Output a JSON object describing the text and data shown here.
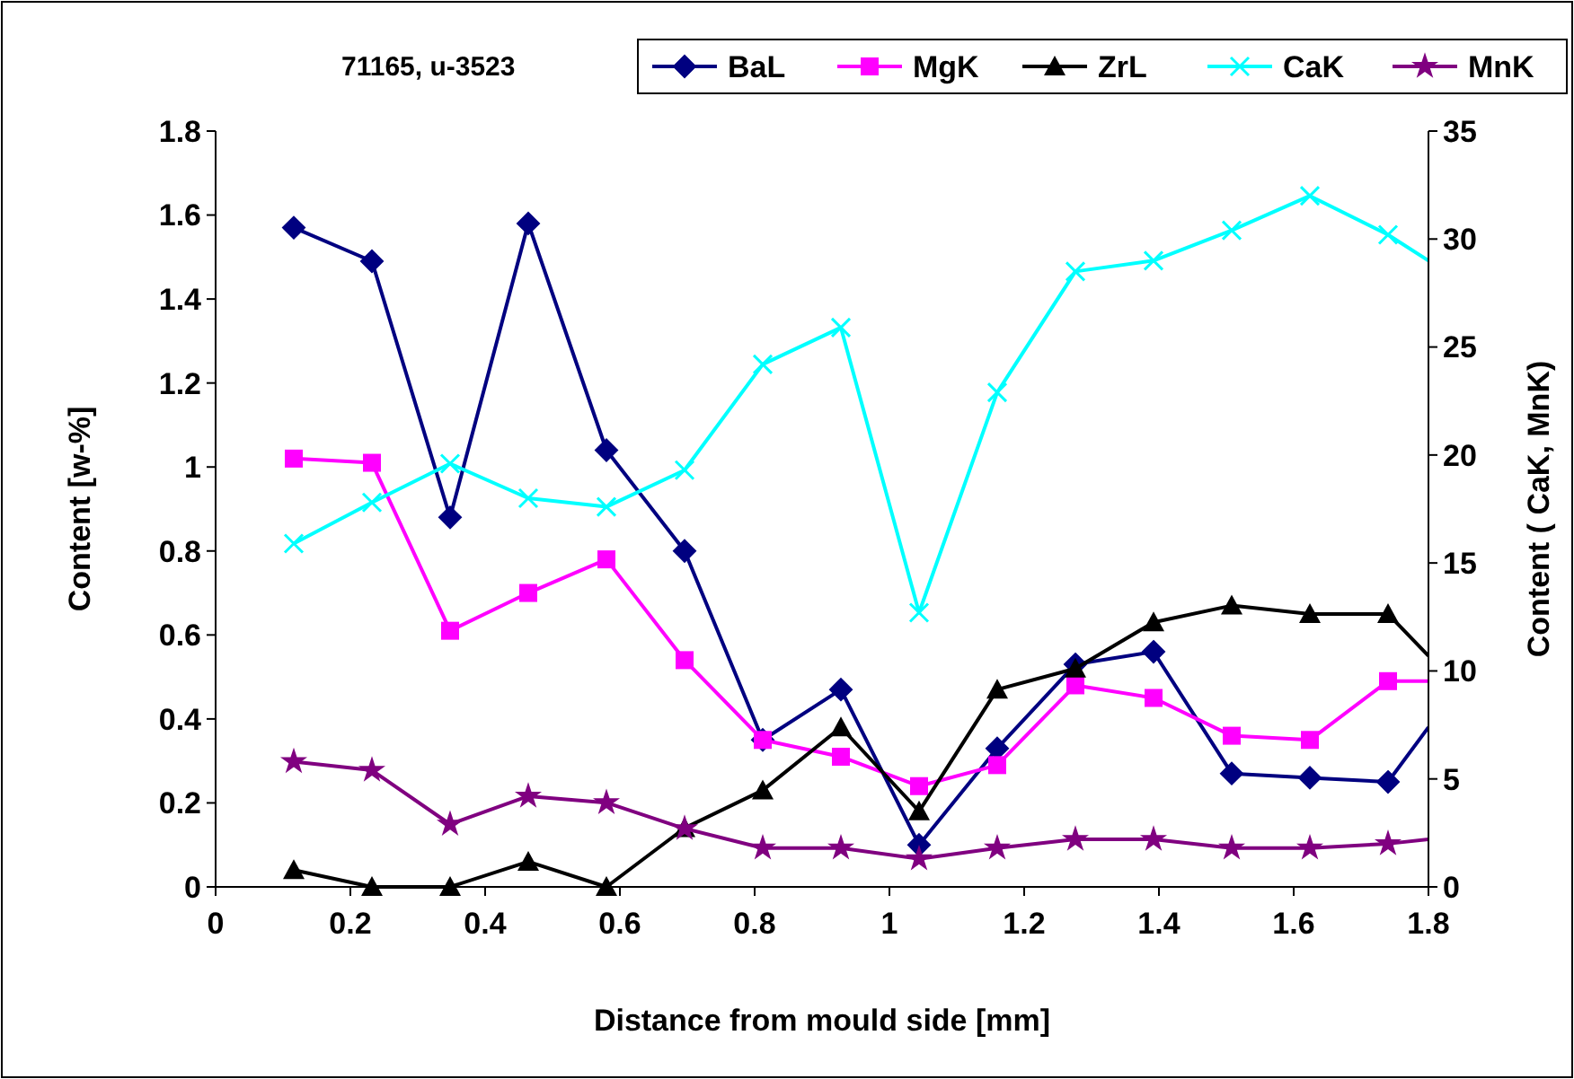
{
  "chart_data": {
    "type": "line",
    "title": "71165, u-3523",
    "xlabel": "Distance from mould side [mm]",
    "ylabel": "Content  [w-%]",
    "y2label": "Content ( CaK, MnK)",
    "x": [
      0.116,
      0.232,
      0.348,
      0.464,
      0.58,
      0.696,
      0.812,
      0.928,
      1.044,
      1.16,
      1.276,
      1.392,
      1.508,
      1.624,
      1.74,
      1.8
    ],
    "xlim": [
      0,
      1.8
    ],
    "xticks": [
      0,
      0.2,
      0.4,
      0.6,
      0.8,
      1,
      1.2,
      1.4,
      1.6,
      1.8
    ],
    "ylim": [
      0,
      1.8
    ],
    "yticks": [
      0,
      0.2,
      0.4,
      0.6,
      0.8,
      1,
      1.2,
      1.4,
      1.6,
      1.8
    ],
    "y2lim": [
      0,
      35
    ],
    "y2ticks": [
      0,
      5,
      10,
      15,
      20,
      25,
      30,
      35
    ],
    "legend": "top right",
    "grid": false,
    "series": [
      {
        "name": "BaL",
        "color": "#000080",
        "marker": "diamond",
        "values": [
          1.57,
          1.49,
          0.88,
          1.58,
          1.04,
          0.8,
          0.35,
          0.47,
          0.1,
          0.33,
          0.53,
          0.56,
          0.27,
          0.26,
          0.25,
          0.38
        ]
      },
      {
        "name": "MgK",
        "color": "#ff00ff",
        "marker": "square",
        "values": [
          1.02,
          1.01,
          0.61,
          0.7,
          0.78,
          0.54,
          0.35,
          0.31,
          0.24,
          0.29,
          0.48,
          0.45,
          0.36,
          0.35,
          0.49,
          0.49
        ]
      },
      {
        "name": "ZrL",
        "color": "#000000",
        "marker": "triangle",
        "values": [
          0.04,
          0,
          0,
          0.06,
          0,
          0.14,
          0.23,
          0.38,
          0.18,
          0.47,
          0.52,
          0.63,
          0.67,
          0.65,
          0.65,
          0.55
        ]
      },
      {
        "name": "CaK",
        "color": "#00ffff",
        "marker": "cross",
        "axis": "y2",
        "values": [
          15.9,
          17.8,
          19.6,
          18,
          17.6,
          19.3,
          24.2,
          25.9,
          12.7,
          22.9,
          28.5,
          29,
          30.4,
          32,
          30.2,
          29
        ]
      },
      {
        "name": "MnK",
        "color": "#800080",
        "marker": "star",
        "axis": "y2",
        "values": [
          5.8,
          5.4,
          2.9,
          4.2,
          3.9,
          2.7,
          1.8,
          1.8,
          1.3,
          1.8,
          2.2,
          2.2,
          1.8,
          1.8,
          2,
          2.2
        ]
      }
    ]
  }
}
